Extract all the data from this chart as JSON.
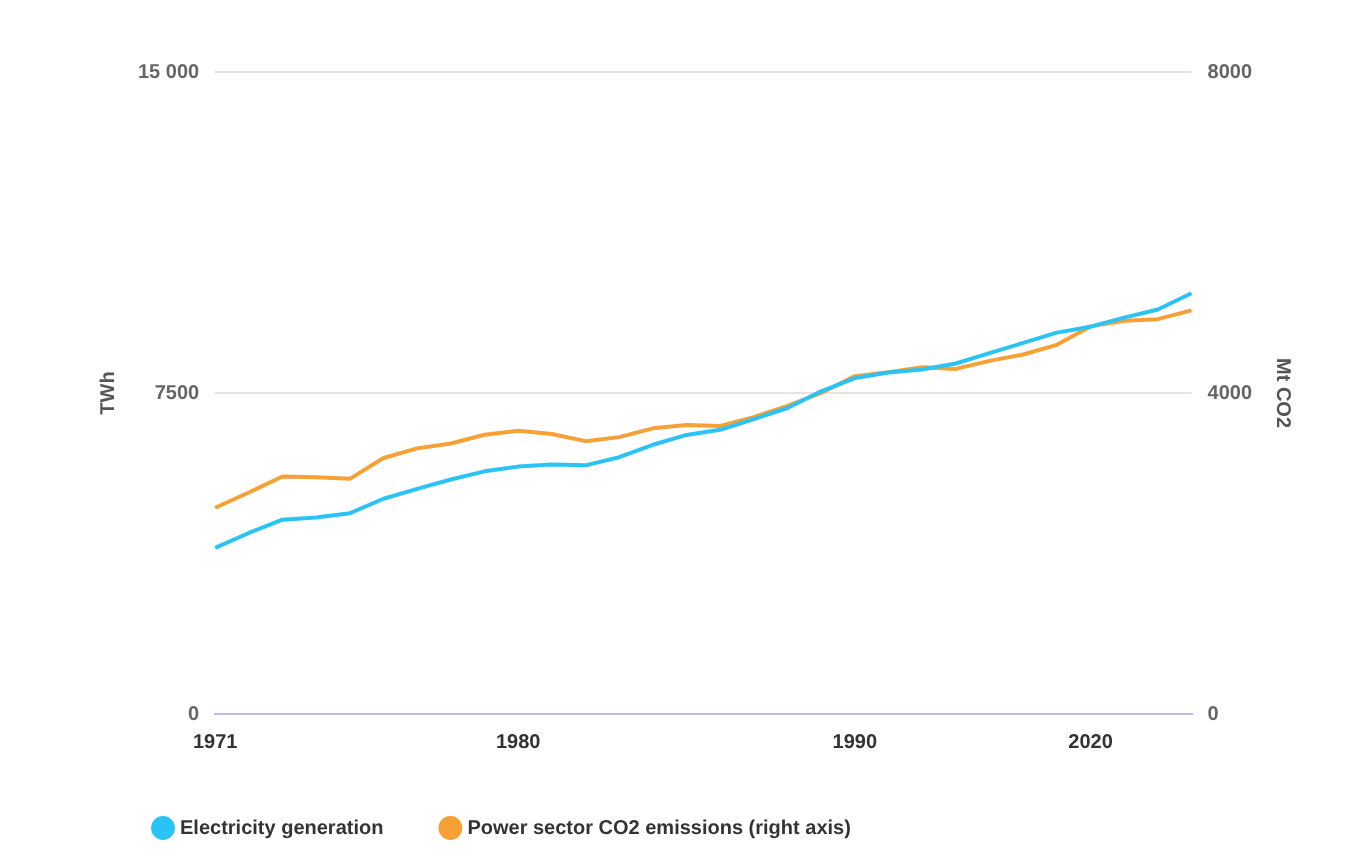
{
  "chart_data": {
    "type": "line",
    "categories": [
      "1971",
      null,
      null,
      null,
      null,
      null,
      null,
      null,
      null,
      "1980",
      null,
      null,
      null,
      null,
      null,
      null,
      null,
      null,
      null,
      "1990",
      null,
      null,
      null,
      null,
      null,
      null,
      "2020",
      null,
      null,
      null
    ],
    "series": [
      {
        "name": "Electricity generation",
        "color": "#29c4f5",
        "values": [
          3880,
          4230,
          4540,
          4590,
          4690,
          5030,
          5260,
          5480,
          5670,
          5780,
          5830,
          5810,
          6000,
          6290,
          6520,
          6640,
          6890,
          7150,
          7540,
          7850,
          7980,
          8050,
          8190,
          8430,
          8670,
          8910,
          9050,
          9260,
          9450,
          9830
        ]
      },
      {
        "name": "Power sector CO2 emissions (right axis)",
        "color": "#f7a035",
        "axis": "y2",
        "values": [
          2570,
          2760,
          2960,
          2950,
          2930,
          3190,
          3310,
          3370,
          3480,
          3530,
          3490,
          3400,
          3450,
          3560,
          3600,
          3590,
          3700,
          3840,
          4000,
          4210,
          4260,
          4320,
          4300,
          4400,
          4480,
          4600,
          4830,
          4900,
          4920,
          5030
        ]
      }
    ],
    "ylabel": "TWh",
    "ylim": [
      0,
      15000
    ],
    "yticks": [
      0,
      7500,
      {
        "value": 15000,
        "label": "15 000"
      }
    ],
    "y2label": "Mt CO2",
    "y2lim": [
      0,
      8000
    ],
    "y2ticks": [
      0,
      4000,
      8000
    ],
    "grid": "y",
    "legend": "bottom left",
    "marker": "none",
    "line_style": "solid"
  }
}
